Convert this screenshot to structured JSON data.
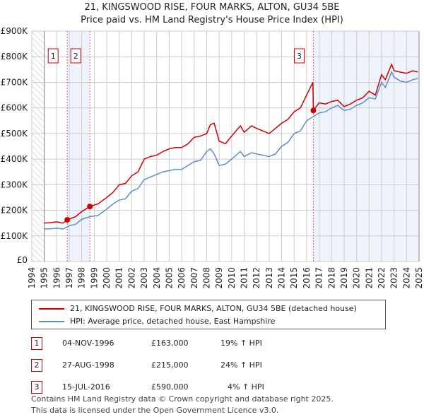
{
  "chart_data": {
    "type": "line",
    "title": "21, KINGSWOOD RISE, FOUR MARKS, ALTON, GU34 5BE",
    "subtitle": "Price paid vs. HM Land Registry's House Price Index (HPI)",
    "xlim": [
      1994,
      2025
    ],
    "ylim": [
      0,
      900000
    ],
    "yticks": [
      0,
      100000,
      200000,
      300000,
      400000,
      500000,
      600000,
      700000,
      800000,
      900000
    ],
    "ytick_labels": [
      "£0",
      "£100K",
      "£200K",
      "£300K",
      "£400K",
      "£500K",
      "£600K",
      "£700K",
      "£800K",
      "£900K"
    ],
    "xticks": [
      1994,
      1995,
      1996,
      1997,
      1998,
      1999,
      2000,
      2001,
      2002,
      2003,
      2004,
      2005,
      2006,
      2007,
      2008,
      2009,
      2010,
      2011,
      2012,
      2013,
      2014,
      2015,
      2016,
      2017,
      2018,
      2019,
      2020,
      2021,
      2022,
      2023,
      2024,
      2025
    ],
    "grid": true,
    "series": [
      {
        "name": "21, KINGSWOOD RISE, FOUR MARKS, ALTON, GU34 5BE (detached house)",
        "color": "#cc0000",
        "x": [
          1995,
          1995.5,
          1996,
          1996.5,
          1996.85,
          1997.5,
          1998,
          1998.65,
          1999.3,
          2000,
          2000.5,
          2001,
          2001.5,
          2002,
          2002.5,
          2003,
          2003.5,
          2004,
          2004.5,
          2005,
          2005.5,
          2006,
          2006.5,
          2007,
          2007.5,
          2008,
          2008.3,
          2008.6,
          2009,
          2009.5,
          2010,
          2010.7,
          2011,
          2011.6,
          2012,
          2012.5,
          2013,
          2013.5,
          2014,
          2014.5,
          2015,
          2015.5,
          2016,
          2016.5,
          2016.54,
          2017,
          2017.5,
          2018,
          2018.5,
          2019,
          2019.5,
          2020,
          2020.5,
          2021,
          2021.5,
          2022,
          2022.3,
          2022.8,
          2023,
          2023.5,
          2024,
          2024.5,
          2024.9
        ],
        "y": [
          150000,
          152000,
          155000,
          150000,
          163000,
          175000,
          195000,
          215000,
          225000,
          250000,
          270000,
          300000,
          305000,
          335000,
          350000,
          400000,
          410000,
          415000,
          430000,
          440000,
          445000,
          445000,
          460000,
          485000,
          490000,
          500000,
          535000,
          540000,
          470000,
          460000,
          490000,
          530000,
          505000,
          530000,
          520000,
          510000,
          500000,
          520000,
          540000,
          555000,
          585000,
          600000,
          650000,
          700000,
          590000,
          620000,
          615000,
          625000,
          630000,
          605000,
          615000,
          630000,
          640000,
          665000,
          650000,
          730000,
          710000,
          770000,
          745000,
          740000,
          735000,
          745000,
          740000
        ]
      },
      {
        "name": "HPI: Average price, detached house, East Hampshire",
        "color": "#5b8fd0",
        "x": [
          1995,
          1995.5,
          1996,
          1996.5,
          1997,
          1997.5,
          1998,
          1998.65,
          1999.3,
          2000,
          2000.5,
          2001,
          2001.5,
          2002,
          2002.5,
          2003,
          2003.5,
          2004,
          2004.5,
          2005,
          2005.5,
          2006,
          2006.5,
          2007,
          2007.5,
          2008,
          2008.3,
          2008.6,
          2009,
          2009.5,
          2010,
          2010.7,
          2011,
          2011.6,
          2012,
          2012.5,
          2013,
          2013.5,
          2014,
          2014.5,
          2015,
          2015.5,
          2016,
          2016.5,
          2017,
          2017.5,
          2018,
          2018.5,
          2019,
          2019.5,
          2020,
          2020.5,
          2021,
          2021.5,
          2022,
          2022.3,
          2022.8,
          2023,
          2023.5,
          2024,
          2024.5,
          2024.9
        ],
        "y": [
          127000,
          128000,
          130000,
          127000,
          140000,
          145000,
          165000,
          175000,
          180000,
          205000,
          225000,
          240000,
          245000,
          275000,
          285000,
          320000,
          330000,
          340000,
          350000,
          355000,
          360000,
          360000,
          375000,
          390000,
          395000,
          430000,
          440000,
          420000,
          375000,
          380000,
          400000,
          430000,
          410000,
          425000,
          420000,
          415000,
          410000,
          420000,
          450000,
          465000,
          500000,
          510000,
          550000,
          565000,
          580000,
          585000,
          600000,
          610000,
          590000,
          595000,
          610000,
          620000,
          640000,
          635000,
          700000,
          680000,
          740000,
          720000,
          705000,
          700000,
          710000,
          715000
        ]
      }
    ],
    "sales": [
      {
        "label": "1",
        "x": 1996.84,
        "price": 163000,
        "date": "04-NOV-1996",
        "price_text": "£163,000",
        "hpi": "19% ↑ HPI"
      },
      {
        "label": "2",
        "x": 1998.65,
        "price": 215000,
        "date": "27-AUG-1998",
        "price_text": "£215,000",
        "hpi": "24% ↑ HPI"
      },
      {
        "label": "3",
        "x": 2016.54,
        "price": 590000,
        "date": "15-JUL-2016",
        "price_text": "£590,000",
        "hpi": "4% ↑ HPI"
      }
    ],
    "legend_placement": "below"
  },
  "footer": {
    "line1": "Contains HM Land Registry data © Crown copyright and database right 2025.",
    "line2": "This data is licensed under the Open Government Licence v3.0."
  }
}
